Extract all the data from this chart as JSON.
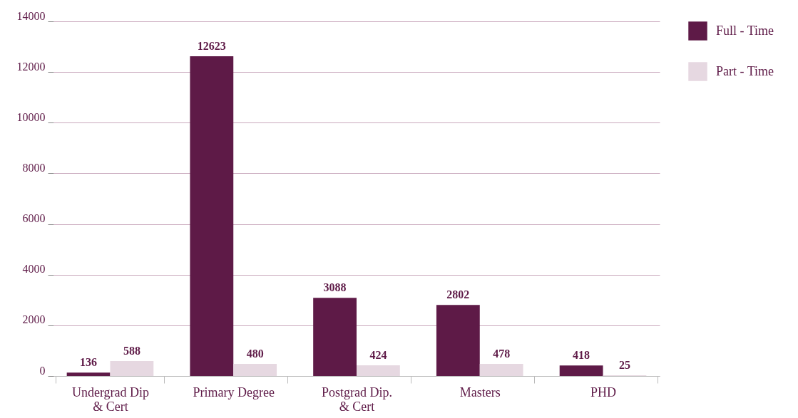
{
  "chart_data": {
    "type": "bar",
    "categories": [
      "Undergrad Dip & Cert",
      "Primary Degree",
      "Postgrad Dip. & Cert",
      "Masters",
      "PHD"
    ],
    "series": [
      {
        "name": "Full - Time",
        "color": "#5e1a47",
        "values": [
          136,
          12623,
          3088,
          2802,
          418
        ]
      },
      {
        "name": "Part - Time",
        "color": "#e6d8e1",
        "values": [
          588,
          480,
          424,
          478,
          25
        ]
      }
    ],
    "ylim": [
      0,
      14000
    ],
    "yticks": [
      0,
      2000,
      4000,
      6000,
      8000,
      10000,
      12000,
      14000
    ],
    "grid": "y",
    "legend": "right",
    "data_labels": true
  }
}
